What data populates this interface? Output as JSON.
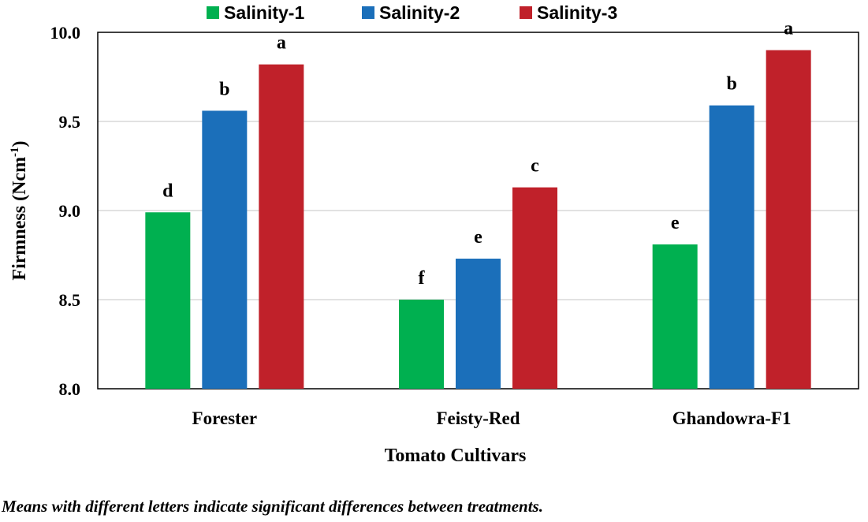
{
  "chart_data": {
    "type": "bar",
    "categories": [
      "Forester",
      "Feisty-Red",
      "Ghandowra-F1"
    ],
    "series": [
      {
        "name": "Salinity-1",
        "color": "#00b050",
        "values": [
          8.99,
          8.5,
          8.81
        ],
        "letters": [
          "d",
          "f",
          "e"
        ]
      },
      {
        "name": "Salinity-2",
        "color": "#1b6fba",
        "values": [
          9.56,
          8.73,
          9.59
        ],
        "letters": [
          "b",
          "e",
          "b"
        ]
      },
      {
        "name": "Salinity-3",
        "color": "#c0212a",
        "values": [
          9.82,
          9.13,
          9.9
        ],
        "letters": [
          "a",
          "c",
          "a"
        ]
      }
    ],
    "ylim": [
      8.0,
      10.0
    ],
    "yticks": [
      "8.0",
      "8.5",
      "9.0",
      "9.5",
      "10.0"
    ],
    "ytick_values": [
      8.0,
      8.5,
      9.0,
      9.5,
      10.0
    ],
    "ylabel_main": "Firmness (Ncm",
    "ylabel_sup": "-1",
    "ylabel_close": ")",
    "xlabel": "Tomato Cultivars",
    "grid": true,
    "legend_position": "top-center"
  },
  "footnote": "Means with different letters indicate significant differences between treatments."
}
